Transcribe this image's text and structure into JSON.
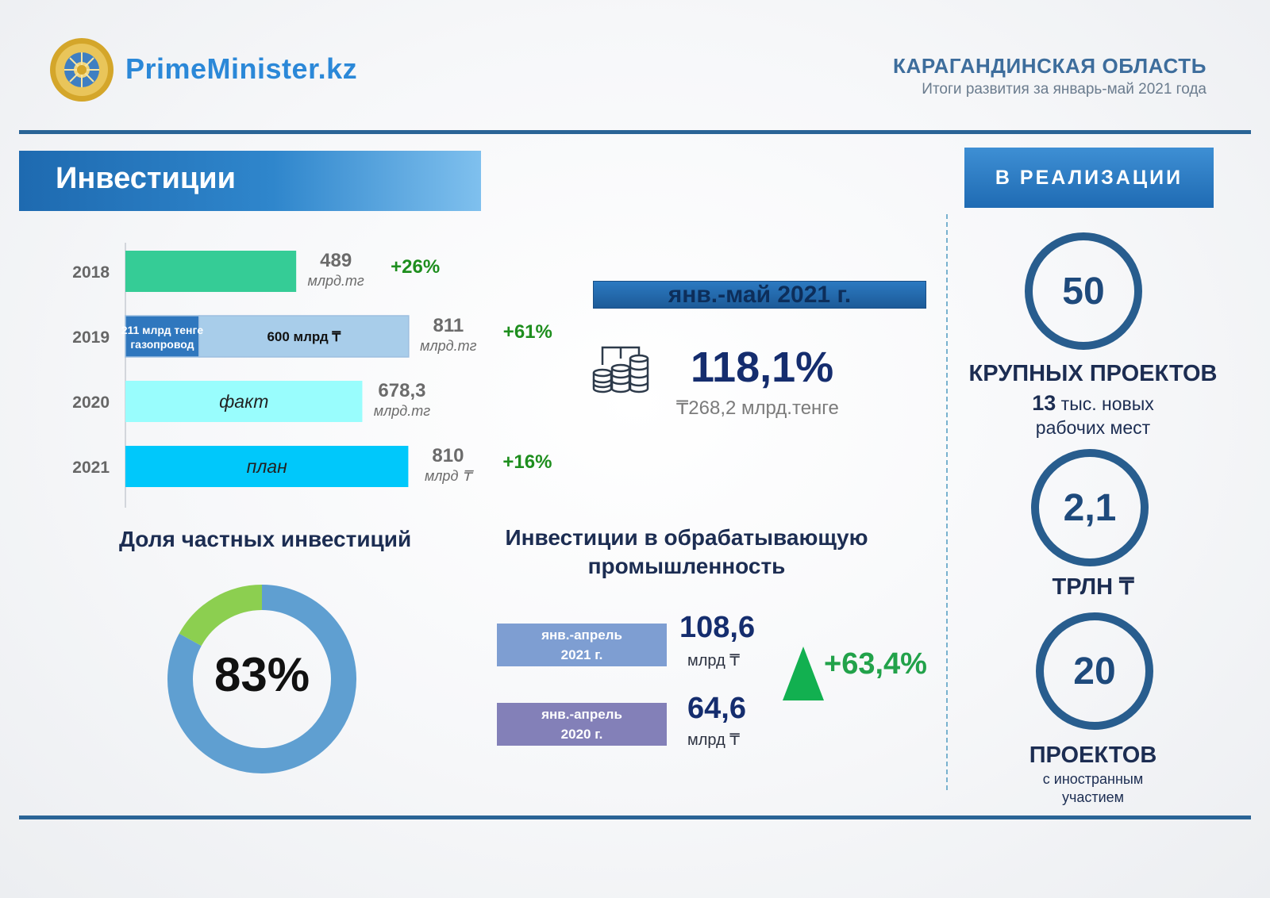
{
  "header": {
    "brand": "PrimeMinister.kz",
    "region": "КАРАГАНДИНСКАЯ ОБЛАСТЬ",
    "subtitle": "Итоги развития за январь-май 2021 года"
  },
  "section": {
    "title": "Инвестиции"
  },
  "implementation": {
    "title": "В РЕАЛИЗАЦИИ"
  },
  "colors": {
    "accent": "#2a6496",
    "bar_2018": "#35cc96",
    "bar_2019_gas": "#2f77be",
    "bar_2019_rest": "#a8cdea",
    "bar_2020": "#99fdfd",
    "bar_2021": "#00c8fb",
    "growth_green": "#22a24a",
    "donut_main": "#5f9fd1",
    "donut_rest": "#8ccf50"
  },
  "chart_data": [
    {
      "type": "bar",
      "orientation": "horizontal",
      "categories": [
        "2018",
        "2019",
        "2020",
        "2021"
      ],
      "values": [
        489,
        811,
        678.3,
        810
      ],
      "value_labels": [
        "489",
        "811",
        "678,3",
        "810"
      ],
      "unit_labels": [
        "млрд.тг",
        "млрд.тг",
        "млрд.тг",
        "млрд ₸"
      ],
      "growth_labels": [
        "+26%",
        "+61%",
        "",
        "+16%"
      ],
      "segments_2019": [
        {
          "value": 211,
          "label_lines": [
            "211 млрд тенге",
            "газопровод"
          ]
        },
        {
          "value": 600,
          "label": "600 млрд ₸"
        }
      ],
      "bar_labels": {
        "2020": "факт",
        "2021": "план"
      },
      "xlim": [
        0,
        1000
      ]
    },
    {
      "type": "pie",
      "title": "Доля частных инвестиций",
      "values": [
        83,
        17
      ],
      "center_label": "83%"
    },
    {
      "type": "bar",
      "title": "Инвестиции в обрабатывающую промышленность",
      "categories": [
        [
          "янв.-апрель",
          "2021 г."
        ],
        [
          "янв.-апрель",
          "2020 г."
        ]
      ],
      "values": [
        108.6,
        64.6
      ],
      "value_labels": [
        "108,6",
        "64,6"
      ],
      "unit": "млрд ₸",
      "growth": "+63,4%"
    }
  ],
  "highlight": {
    "period": "янв.-май 2021 г.",
    "percent": "118,1%",
    "amount": "₸268,2 млрд.тенге"
  },
  "right": {
    "block1": {
      "value": "50",
      "title": "КРУПНЫХ ПРОЕКТОВ",
      "number": "13",
      "line1_rest": " тыс. новых",
      "line2": "рабочих мест"
    },
    "block2": {
      "value": "2,1",
      "title": "ТРЛН ₸"
    },
    "block3": {
      "value": "20",
      "title": "ПРОЕКТОВ",
      "line1": "с иностранным",
      "line2": "участием"
    }
  }
}
